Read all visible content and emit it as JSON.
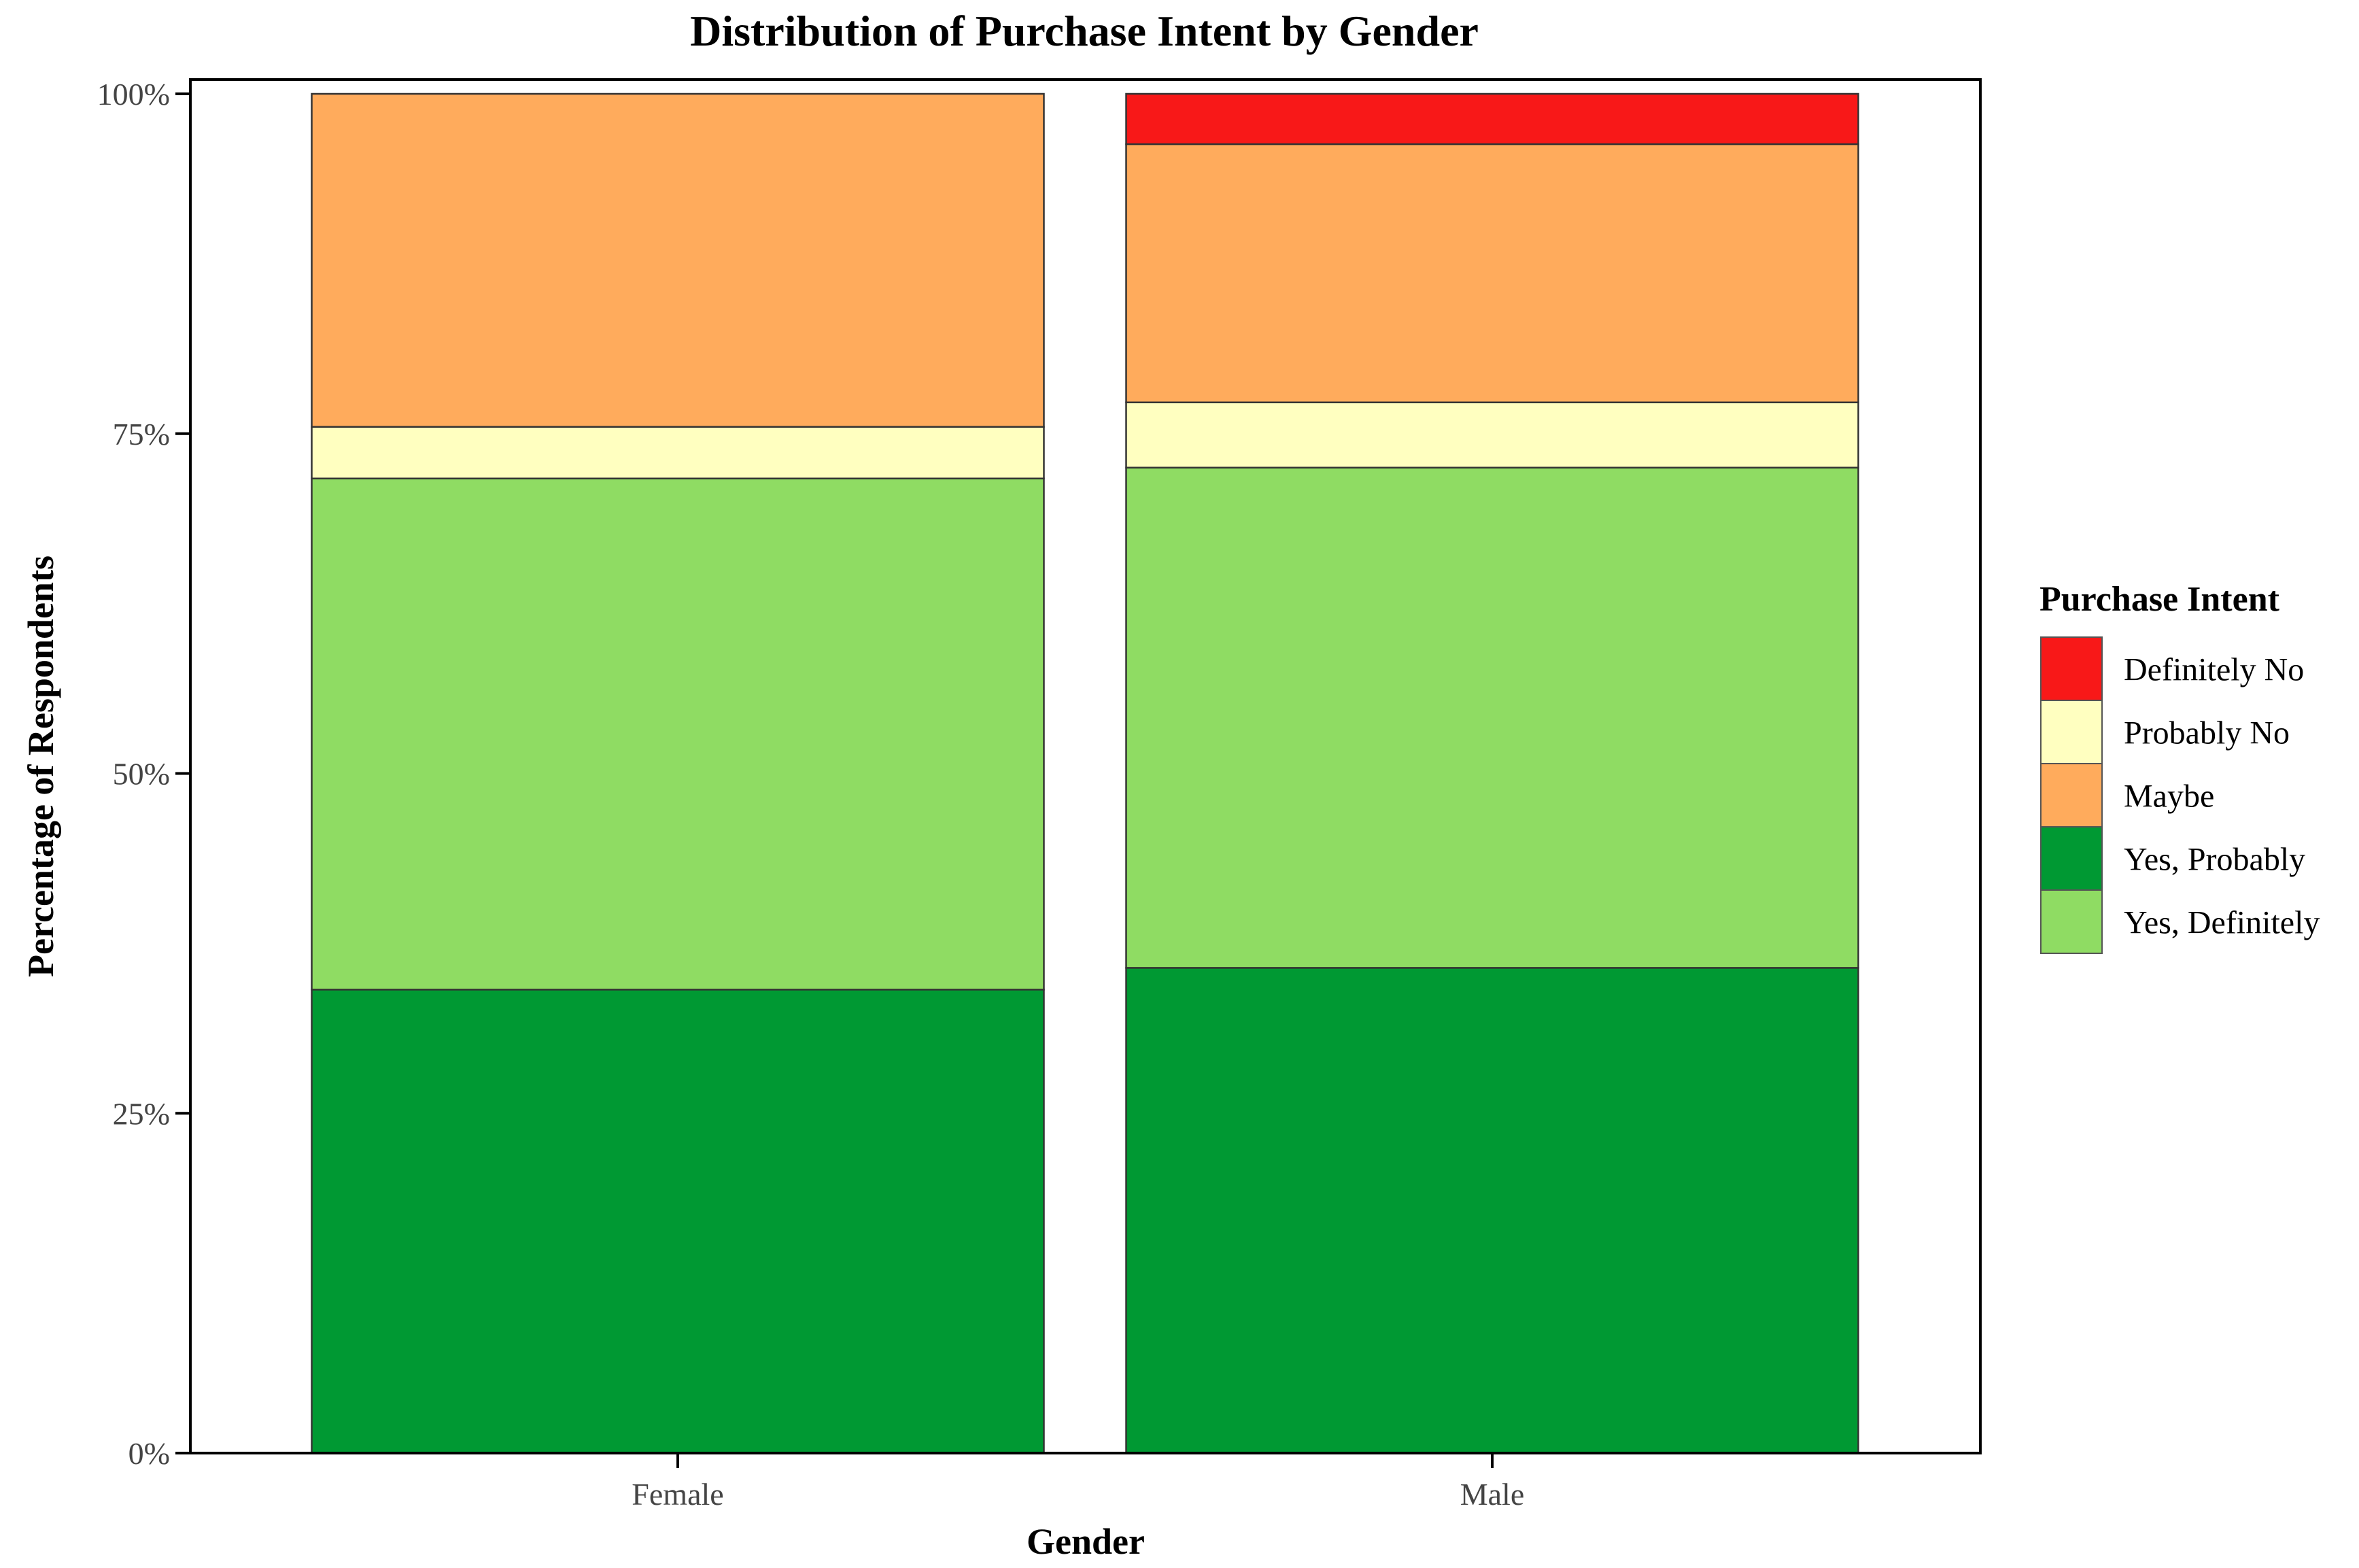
{
  "chart_data": {
    "type": "bar",
    "stacked": true,
    "title": "Distribution of Purchase Intent by Gender",
    "xlabel": "Gender",
    "ylabel": "Percentage of Respondents",
    "categories": [
      "Female",
      "Male"
    ],
    "ylim": [
      0,
      100
    ],
    "yticks": [
      0,
      25,
      50,
      75,
      100
    ],
    "ytick_labels": [
      "0%",
      "25%",
      "50%",
      "75%",
      "100%"
    ],
    "grid": false,
    "series": [
      {
        "name": "Yes, Probably",
        "color": "#009933",
        "values": [
          34.1,
          35.7
        ]
      },
      {
        "name": "Yes, Definitely",
        "color": "#8fdc63",
        "values": [
          37.6,
          36.8
        ]
      },
      {
        "name": "Probably No",
        "color": "#ffffc0",
        "values": [
          3.8,
          4.8
        ]
      },
      {
        "name": "Maybe",
        "color": "#ffab5c",
        "values": [
          24.5,
          19.0
        ]
      },
      {
        "name": "Definitely No",
        "color": "#f81818",
        "values": [
          0,
          3.7
        ]
      }
    ],
    "legend": {
      "title": "Purchase Intent",
      "placement": "right",
      "order": [
        "Definitely No",
        "Probably No",
        "Maybe",
        "Yes, Probably",
        "Yes, Definitely"
      ]
    }
  }
}
